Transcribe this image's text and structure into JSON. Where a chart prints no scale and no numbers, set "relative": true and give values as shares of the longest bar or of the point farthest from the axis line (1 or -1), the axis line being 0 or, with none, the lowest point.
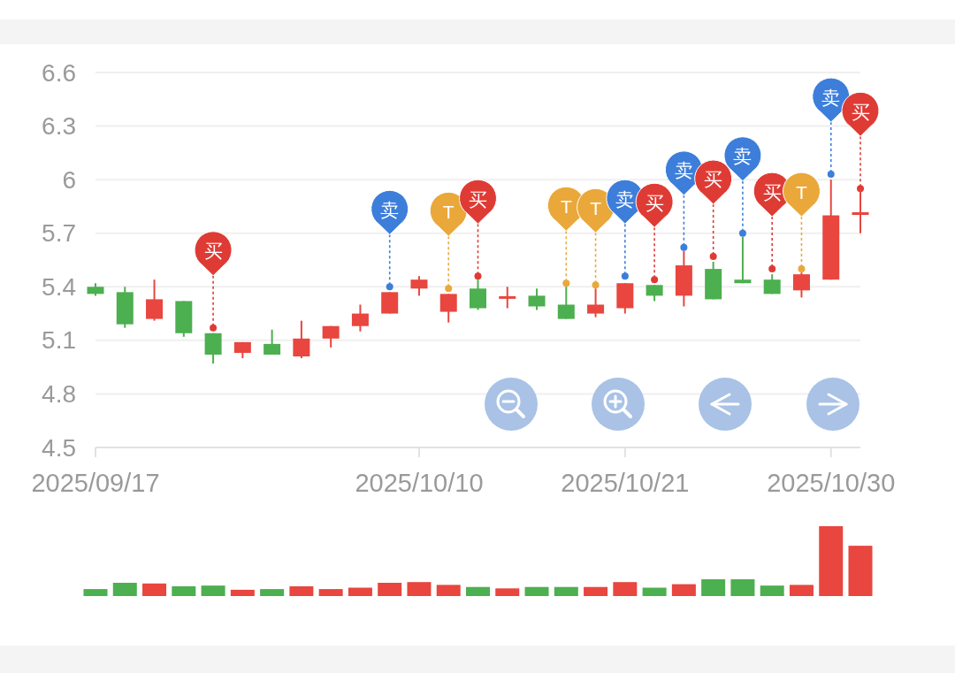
{
  "chart_data": [
    {
      "type": "candlestick",
      "categories": [
        "2025/09/17",
        null,
        null,
        null,
        null,
        null,
        null,
        null,
        null,
        null,
        null,
        "2025/10/10",
        null,
        null,
        null,
        null,
        null,
        null,
        "2025/10/21",
        null,
        null,
        null,
        null,
        null,
        null,
        "2025/10/30",
        null
      ],
      "ohlc": [
        [
          5.4,
          5.42,
          5.35,
          5.36
        ],
        [
          5.37,
          5.4,
          5.17,
          5.19
        ],
        [
          5.22,
          5.44,
          5.21,
          5.33
        ],
        [
          5.32,
          5.32,
          5.12,
          5.14
        ],
        [
          5.14,
          5.14,
          4.97,
          5.02
        ],
        [
          5.03,
          5.09,
          5.0,
          5.09
        ],
        [
          5.08,
          5.16,
          5.02,
          5.02
        ],
        [
          5.01,
          5.21,
          5.0,
          5.11
        ],
        [
          5.11,
          5.18,
          5.06,
          5.18
        ],
        [
          5.18,
          5.3,
          5.15,
          5.25
        ],
        [
          5.25,
          5.37,
          5.25,
          5.37
        ],
        [
          5.39,
          5.46,
          5.35,
          5.44
        ],
        [
          5.26,
          5.36,
          5.2,
          5.36
        ],
        [
          5.39,
          5.44,
          5.27,
          5.28
        ],
        [
          5.34,
          5.4,
          5.28,
          5.34
        ],
        [
          5.35,
          5.39,
          5.27,
          5.29
        ],
        [
          5.3,
          5.4,
          5.22,
          5.22
        ],
        [
          5.25,
          5.39,
          5.23,
          5.3
        ],
        [
          5.28,
          5.42,
          5.25,
          5.42
        ],
        [
          5.41,
          5.41,
          5.32,
          5.35
        ],
        [
          5.35,
          5.6,
          5.29,
          5.52
        ],
        [
          5.5,
          5.54,
          5.33,
          5.33
        ],
        [
          5.44,
          5.68,
          5.42,
          5.42
        ],
        [
          5.44,
          5.47,
          5.36,
          5.36
        ],
        [
          5.38,
          5.48,
          5.34,
          5.47
        ],
        [
          5.44,
          6.0,
          5.44,
          5.8
        ],
        [
          5.81,
          5.95,
          5.7,
          5.81
        ]
      ],
      "colors": [
        "#4caf50",
        "#4caf50",
        "#e8463f",
        "#4caf50",
        "#4caf50",
        "#e8463f",
        "#4caf50",
        "#e8463f",
        "#e8463f",
        "#e8463f",
        "#e8463f",
        "#e8463f",
        "#e8463f",
        "#4caf50",
        "#e8463f",
        "#4caf50",
        "#4caf50",
        "#e8463f",
        "#e8463f",
        "#4caf50",
        "#e8463f",
        "#4caf50",
        "#4caf50",
        "#4caf50",
        "#e8463f",
        "#e8463f",
        "#e8463f"
      ],
      "ylim": [
        4.5,
        6.6
      ],
      "yticks": [
        4.5,
        4.8,
        5.1,
        5.4,
        5.7,
        6,
        6.3,
        6.6
      ],
      "grid": "y",
      "series": [
        {
          "type": "scatter",
          "color": "#3d7edb",
          "values": [
            null,
            null,
            null,
            null,
            null,
            null,
            null,
            null,
            null,
            null,
            5.4,
            null,
            null,
            null,
            null,
            null,
            null,
            null,
            5.46,
            null,
            5.62,
            null,
            5.7,
            null,
            null,
            6.03,
            null
          ],
          "value_labels": [
            null,
            null,
            null,
            null,
            null,
            null,
            null,
            null,
            null,
            null,
            "卖",
            null,
            null,
            null,
            null,
            null,
            null,
            null,
            "卖",
            null,
            "卖",
            null,
            "卖",
            null,
            null,
            "卖",
            null
          ]
        },
        {
          "type": "scatter",
          "color": "#eaa83a",
          "values": [
            null,
            null,
            null,
            null,
            null,
            null,
            null,
            null,
            null,
            null,
            null,
            null,
            5.39,
            null,
            null,
            null,
            5.42,
            5.41,
            null,
            null,
            null,
            null,
            null,
            null,
            5.5,
            null,
            null
          ],
          "value_labels": [
            null,
            null,
            null,
            null,
            null,
            null,
            null,
            null,
            null,
            null,
            null,
            null,
            "T",
            null,
            null,
            null,
            "T",
            "T",
            null,
            null,
            null,
            null,
            null,
            null,
            "T",
            null,
            null
          ]
        },
        {
          "type": "scatter",
          "color": "#df3b35",
          "values": [
            null,
            null,
            null,
            null,
            5.17,
            null,
            null,
            null,
            null,
            null,
            null,
            null,
            null,
            5.46,
            null,
            null,
            null,
            null,
            null,
            5.44,
            null,
            5.57,
            null,
            5.5,
            null,
            null,
            5.95
          ],
          "value_labels": [
            null,
            null,
            null,
            null,
            "买",
            null,
            null,
            null,
            null,
            null,
            null,
            null,
            null,
            "买",
            null,
            null,
            null,
            null,
            null,
            "买",
            null,
            "买",
            null,
            "买",
            null,
            null,
            "买"
          ]
        }
      ]
    },
    {
      "type": "bar",
      "categories": [
        "2025/09/17",
        null,
        null,
        null,
        null,
        null,
        null,
        null,
        null,
        null,
        null,
        "2025/10/10",
        null,
        null,
        null,
        null,
        null,
        null,
        "2025/10/21",
        null,
        null,
        null,
        null,
        null,
        null,
        "2025/10/30",
        null
      ],
      "values": [
        0.1,
        0.19,
        0.18,
        0.14,
        0.15,
        0.09,
        0.1,
        0.14,
        0.1,
        0.12,
        0.19,
        0.2,
        0.16,
        0.13,
        0.11,
        0.13,
        0.13,
        0.13,
        0.2,
        0.12,
        0.17,
        0.24,
        0.24,
        0.15,
        0.16,
        1,
        0.72
      ],
      "colors": [
        "#4caf50",
        "#4caf50",
        "#e8463f",
        "#4caf50",
        "#4caf50",
        "#e8463f",
        "#4caf50",
        "#e8463f",
        "#e8463f",
        "#e8463f",
        "#e8463f",
        "#e8463f",
        "#e8463f",
        "#4caf50",
        "#e8463f",
        "#4caf50",
        "#4caf50",
        "#e8463f",
        "#e8463f",
        "#4caf50",
        "#e8463f",
        "#4caf50",
        "#4caf50",
        "#4caf50",
        "#e8463f",
        "#e8463f",
        "#e8463f"
      ],
      "relative": true,
      "tick_labels": false
    }
  ]
}
